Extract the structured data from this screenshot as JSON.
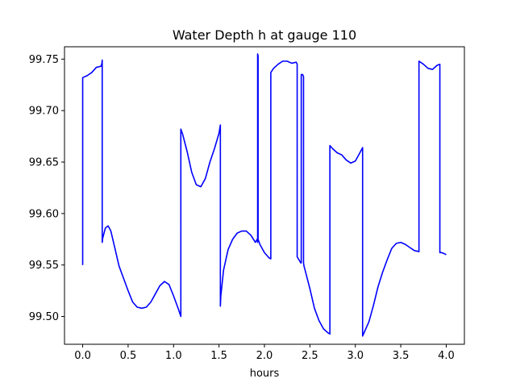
{
  "chart_data": {
    "type": "line",
    "title": "Water Depth h at gauge 110",
    "xlabel": "hours",
    "ylabel": "",
    "xlim": [
      -0.2,
      4.2
    ],
    "ylim": [
      99.473,
      99.762
    ],
    "x_ticks": [
      "0.0",
      "0.5",
      "1.0",
      "1.5",
      "2.0",
      "2.5",
      "3.0",
      "3.5",
      "4.0"
    ],
    "y_ticks": [
      "99.50",
      "99.55",
      "99.60",
      "99.65",
      "99.70",
      "99.75"
    ],
    "grid": false,
    "legend": "none",
    "series": [
      {
        "color": "#0000ff",
        "x": [
          0.0,
          0.0,
          0.05,
          0.1,
          0.15,
          0.2,
          0.21,
          0.215,
          0.215,
          0.22,
          0.25,
          0.28,
          0.31,
          0.35,
          0.4,
          0.45,
          0.5,
          0.55,
          0.6,
          0.65,
          0.7,
          0.75,
          0.8,
          0.85,
          0.9,
          0.95,
          1.0,
          1.05,
          1.08,
          1.08,
          1.1,
          1.15,
          1.2,
          1.25,
          1.3,
          1.35,
          1.4,
          1.45,
          1.5,
          1.515,
          1.515,
          1.52,
          1.55,
          1.6,
          1.65,
          1.7,
          1.75,
          1.8,
          1.85,
          1.9,
          1.92,
          1.925,
          1.925,
          1.93,
          1.93,
          1.95,
          2.0,
          2.05,
          2.07,
          2.07,
          2.1,
          2.15,
          2.2,
          2.25,
          2.3,
          2.35,
          2.36,
          2.36,
          2.4,
          2.405,
          2.405,
          2.42,
          2.43,
          2.43,
          2.435,
          2.45,
          2.5,
          2.55,
          2.6,
          2.65,
          2.7,
          2.72,
          2.72,
          2.75,
          2.8,
          2.85,
          2.9,
          2.95,
          3.0,
          3.05,
          3.08,
          3.08,
          3.1,
          3.15,
          3.2,
          3.25,
          3.3,
          3.35,
          3.4,
          3.45,
          3.5,
          3.55,
          3.6,
          3.65,
          3.7,
          3.7,
          3.75,
          3.8,
          3.85,
          3.9,
          3.93,
          3.93,
          3.95,
          3.98,
          4.0
        ],
        "y": [
          99.55,
          99.732,
          99.734,
          99.737,
          99.742,
          99.743,
          99.745,
          99.749,
          99.572,
          99.576,
          99.586,
          99.588,
          99.583,
          99.568,
          99.549,
          99.537,
          99.525,
          99.514,
          99.509,
          99.508,
          99.509,
          99.514,
          99.522,
          99.53,
          99.534,
          99.531,
          99.52,
          99.508,
          99.5,
          99.682,
          99.677,
          99.66,
          99.64,
          99.628,
          99.626,
          99.634,
          99.65,
          99.663,
          99.678,
          99.686,
          99.51,
          99.52,
          99.545,
          99.565,
          99.575,
          99.581,
          99.583,
          99.583,
          99.579,
          99.572,
          99.575,
          99.572,
          99.755,
          99.753,
          99.575,
          99.57,
          99.562,
          99.557,
          99.556,
          99.737,
          99.741,
          99.745,
          99.748,
          99.748,
          99.746,
          99.747,
          99.745,
          99.558,
          99.552,
          99.552,
          99.735,
          99.735,
          99.733,
          99.552,
          99.549,
          99.544,
          99.527,
          99.508,
          99.496,
          99.488,
          99.484,
          99.483,
          99.666,
          99.663,
          99.659,
          99.657,
          99.652,
          99.649,
          99.651,
          99.659,
          99.664,
          99.481,
          99.485,
          99.495,
          99.511,
          99.529,
          99.543,
          99.555,
          99.566,
          99.571,
          99.572,
          99.57,
          99.567,
          99.564,
          99.563,
          99.748,
          99.745,
          99.741,
          99.74,
          99.744,
          99.745,
          99.562,
          99.562,
          99.561,
          99.56
        ]
      }
    ]
  }
}
